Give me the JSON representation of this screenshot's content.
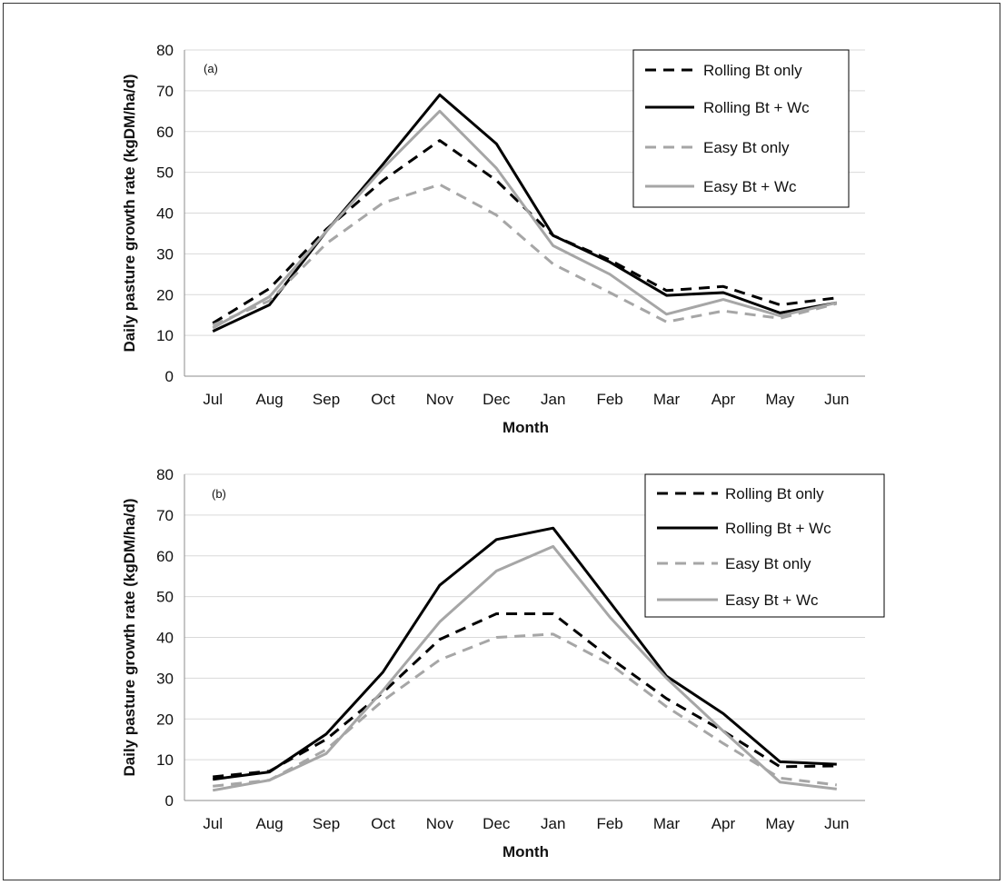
{
  "chart_data": [
    {
      "type": "line",
      "panel_label": "(a)",
      "categories": [
        "Jul",
        "Aug",
        "Sep",
        "Oct",
        "Nov",
        "Dec",
        "Jan",
        "Feb",
        "Mar",
        "Apr",
        "May",
        "Jun"
      ],
      "xlabel": "Month",
      "ylabel": "Daily pasture growth rate (kgDM/ha/d)",
      "ylim": [
        0,
        80
      ],
      "yticks": [
        0,
        10,
        20,
        30,
        40,
        50,
        60,
        70,
        80
      ],
      "grid": "horizontal",
      "legend_position": "top-right",
      "series": [
        {
          "name": "Rolling Bt only",
          "color": "#000000",
          "dash": true,
          "values": [
            13,
            21.5,
            36,
            48,
            57.8,
            48,
            34.5,
            28.5,
            21,
            22,
            17.5,
            19.2
          ]
        },
        {
          "name": "Rolling Bt + Wc",
          "color": "#000000",
          "dash": false,
          "values": [
            11,
            17.5,
            35.5,
            52,
            69,
            57,
            34.5,
            28,
            19.8,
            20.5,
            15.5,
            18
          ]
        },
        {
          "name": "Easy Bt only",
          "color": "#a6a6a6",
          "dash": true,
          "values": [
            12.5,
            18.5,
            32.5,
            42.5,
            47,
            39.5,
            27.5,
            20.5,
            13.3,
            16,
            14.2,
            17.8
          ]
        },
        {
          "name": "Easy Bt + Wc",
          "color": "#a6a6a6",
          "dash": false,
          "values": [
            11.8,
            19.5,
            35.5,
            51,
            65,
            51,
            32,
            25,
            15.2,
            18.8,
            14.8,
            18
          ]
        }
      ]
    },
    {
      "type": "line",
      "panel_label": "(b)",
      "categories": [
        "Jul",
        "Aug",
        "Sep",
        "Oct",
        "Nov",
        "Dec",
        "Jan",
        "Feb",
        "Mar",
        "Apr",
        "May",
        "Jun"
      ],
      "xlabel": "Month",
      "ylabel": "Daily pasture growth rate (kgDM/ha/d)",
      "ylim": [
        0,
        80
      ],
      "yticks": [
        0,
        10,
        20,
        30,
        40,
        50,
        60,
        70,
        80
      ],
      "grid": "horizontal",
      "legend_position": "top-right",
      "series": [
        {
          "name": "Rolling Bt only",
          "color": "#000000",
          "dash": true,
          "values": [
            5.8,
            7.2,
            15,
            26.5,
            39.5,
            45.8,
            45.8,
            35,
            25,
            17,
            8.3,
            8.5
          ]
        },
        {
          "name": "Rolling Bt + Wc",
          "color": "#000000",
          "dash": false,
          "values": [
            5.2,
            7,
            16.3,
            31.5,
            52.8,
            64,
            66.8,
            48.7,
            30.5,
            21.3,
            9.5,
            8.9
          ]
        },
        {
          "name": "Easy Bt only",
          "color": "#a6a6a6",
          "dash": true,
          "values": [
            3.5,
            5,
            12.5,
            24.5,
            34.5,
            40,
            40.8,
            33.5,
            23,
            14,
            5.5,
            3.8
          ]
        },
        {
          "name": "Easy Bt + Wc",
          "color": "#a6a6a6",
          "dash": false,
          "values": [
            2.5,
            5,
            11.5,
            27,
            43.8,
            56.3,
            62.3,
            45,
            30,
            17,
            4.5,
            2.8
          ]
        }
      ]
    }
  ]
}
